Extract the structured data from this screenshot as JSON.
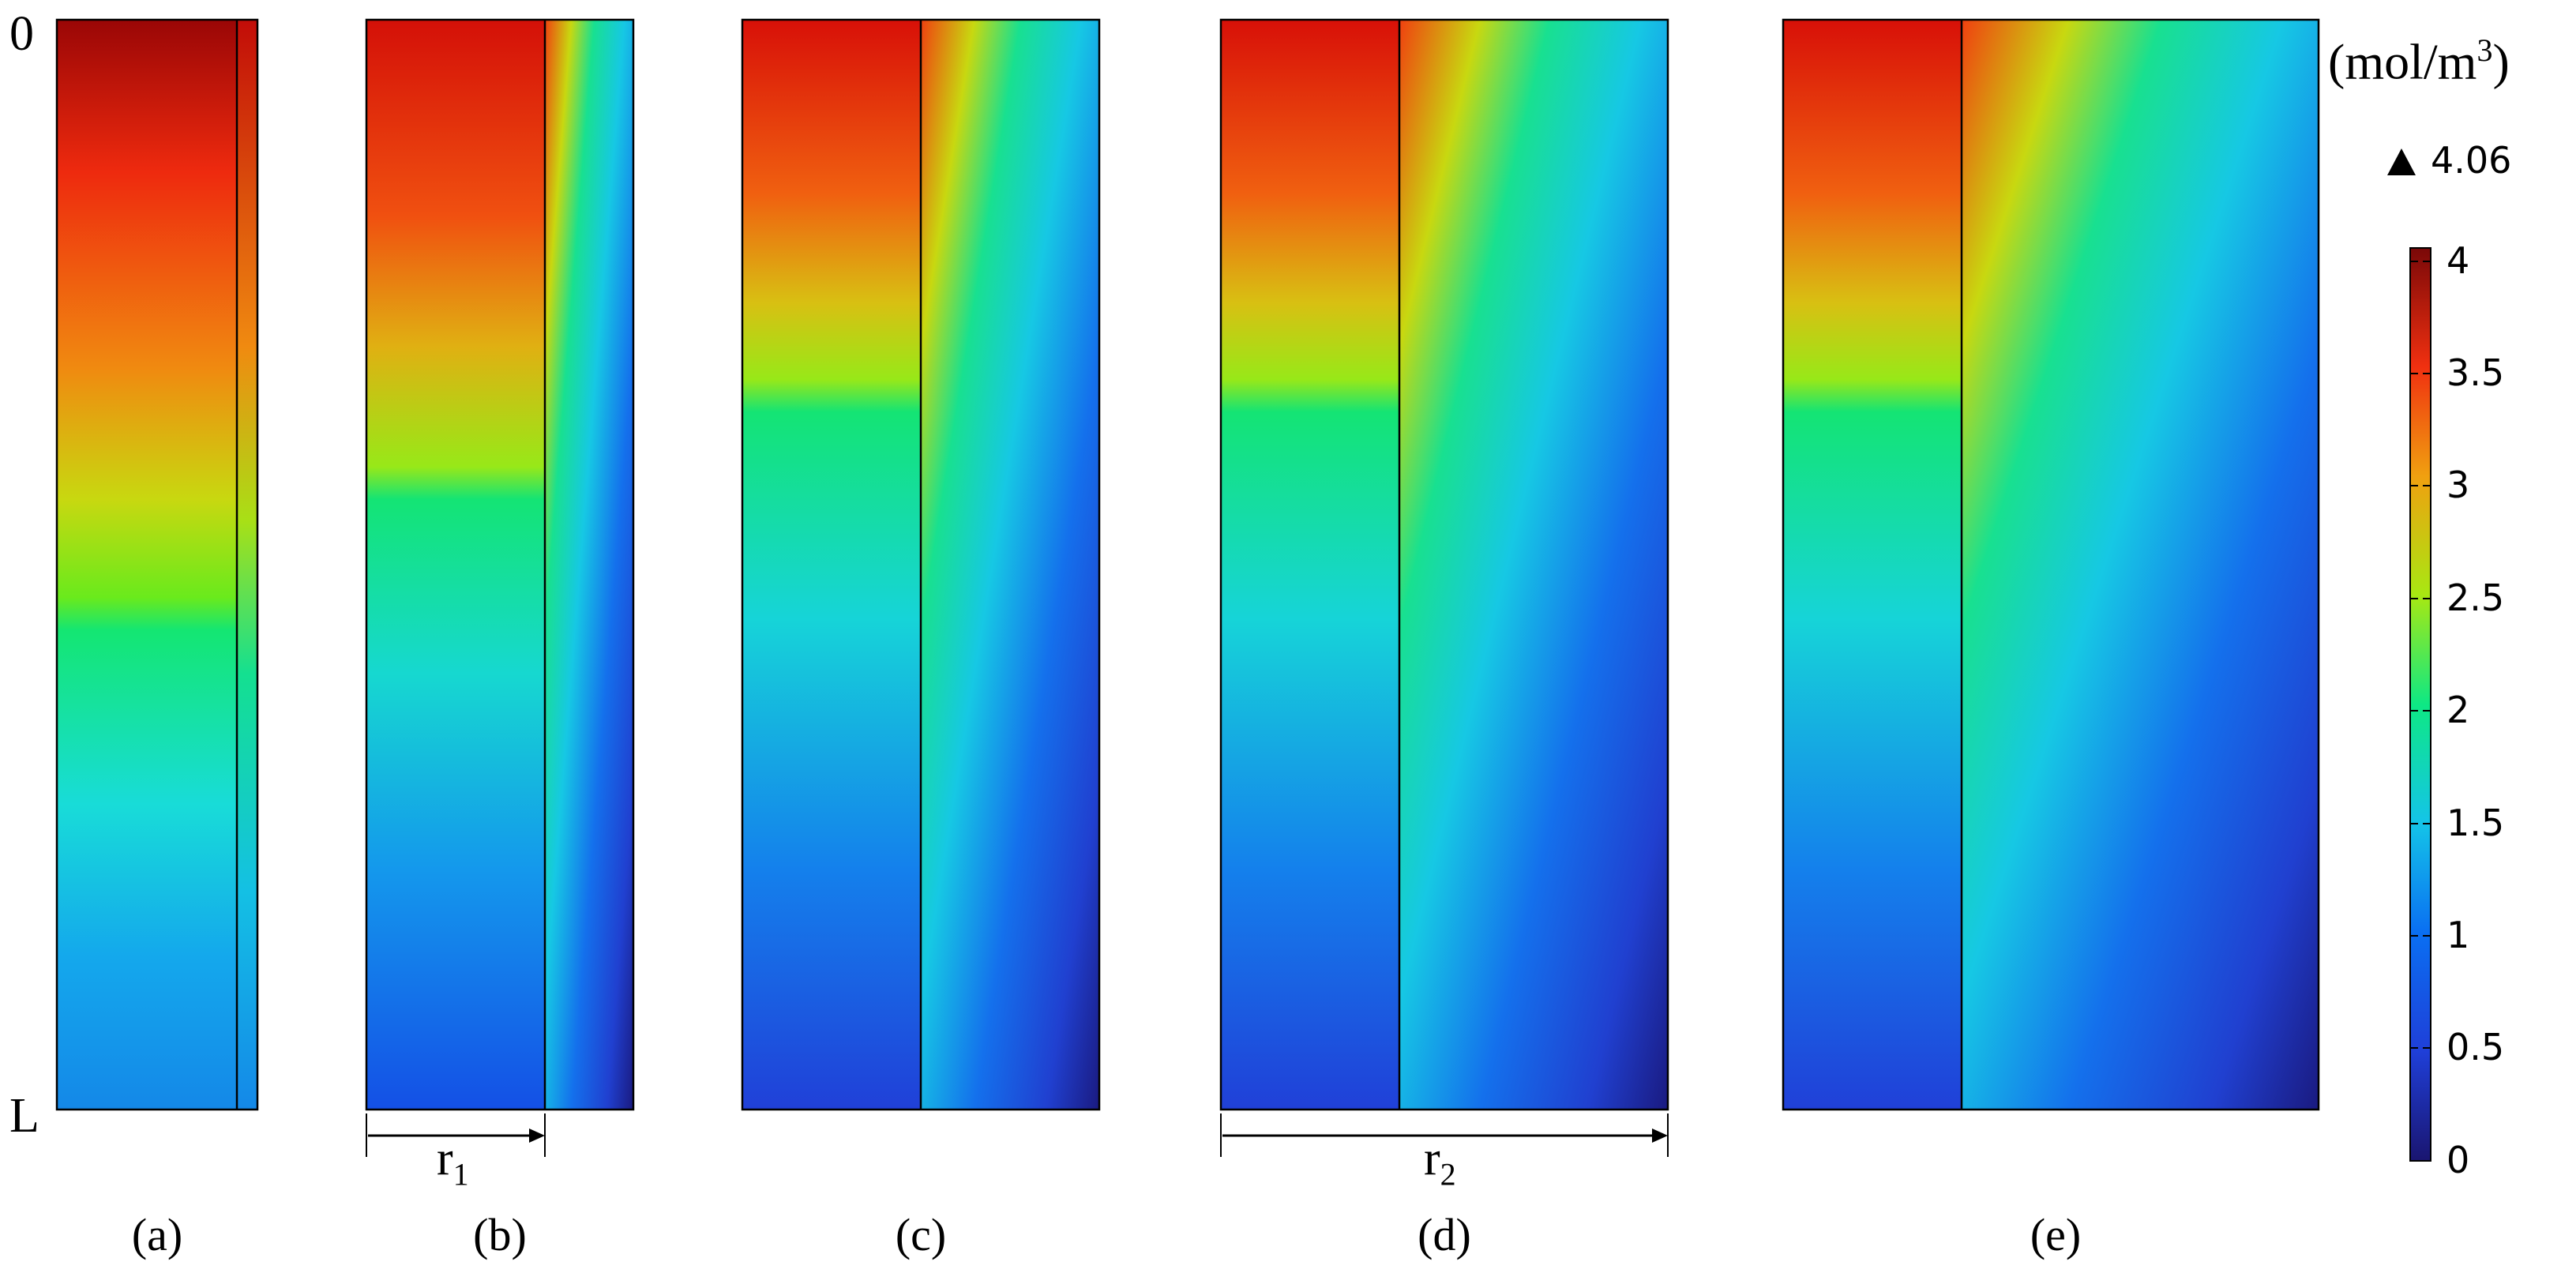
{
  "axis": {
    "top": "0",
    "bottom": "L"
  },
  "panels": [
    {
      "label": "(a)"
    },
    {
      "label": "(b)"
    },
    {
      "label": "(c)"
    },
    {
      "label": "(d)"
    },
    {
      "label": "(e)"
    }
  ],
  "dimensions": {
    "r1": {
      "base": "r",
      "sub": "1"
    },
    "r2": {
      "base": "r",
      "sub": "2"
    }
  },
  "colorbar": {
    "unit": {
      "main": "(mol/m",
      "sup": "3",
      "close": ")"
    },
    "max_marker": "4.06",
    "ticks": [
      "4",
      "3.5",
      "3",
      "2.5",
      "2",
      "1.5",
      "1",
      "0.5",
      "0"
    ],
    "range": [
      0,
      4.06
    ],
    "colormap": "jet"
  },
  "colors": {
    "outline": "#000000",
    "background": "#ffffff"
  }
}
